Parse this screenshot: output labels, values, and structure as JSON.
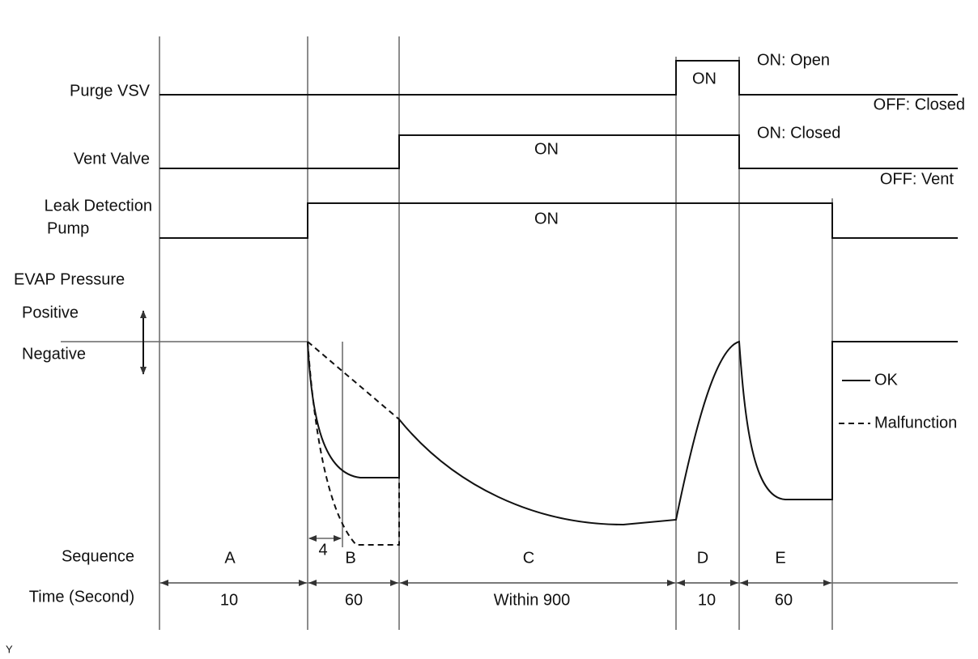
{
  "rows": [
    {
      "label": "Purge VSV",
      "on": "ON",
      "on_state": "ON: Open",
      "off_state": "OFF: Closed"
    },
    {
      "label": "Vent Valve",
      "on": "ON",
      "on_state": "ON: Closed",
      "off_state": "OFF: Vent"
    },
    {
      "label_lines": [
        "Leak Detection",
        "Pump"
      ],
      "on": "ON"
    }
  ],
  "pressure": {
    "label": "EVAP Pressure",
    "positive": "Positive",
    "negative": "Negative"
  },
  "legend": [
    {
      "label": "OK"
    },
    {
      "label": "Malfunction"
    }
  ],
  "sequence": {
    "label": "Sequence",
    "phases": [
      "A",
      "B",
      "C",
      "D",
      "E"
    ],
    "sub_interval": "4"
  },
  "time": {
    "label": "Time (Second)",
    "durations": [
      "10",
      "60",
      "Within 900",
      "10",
      "60"
    ]
  },
  "footnote": "Y"
}
